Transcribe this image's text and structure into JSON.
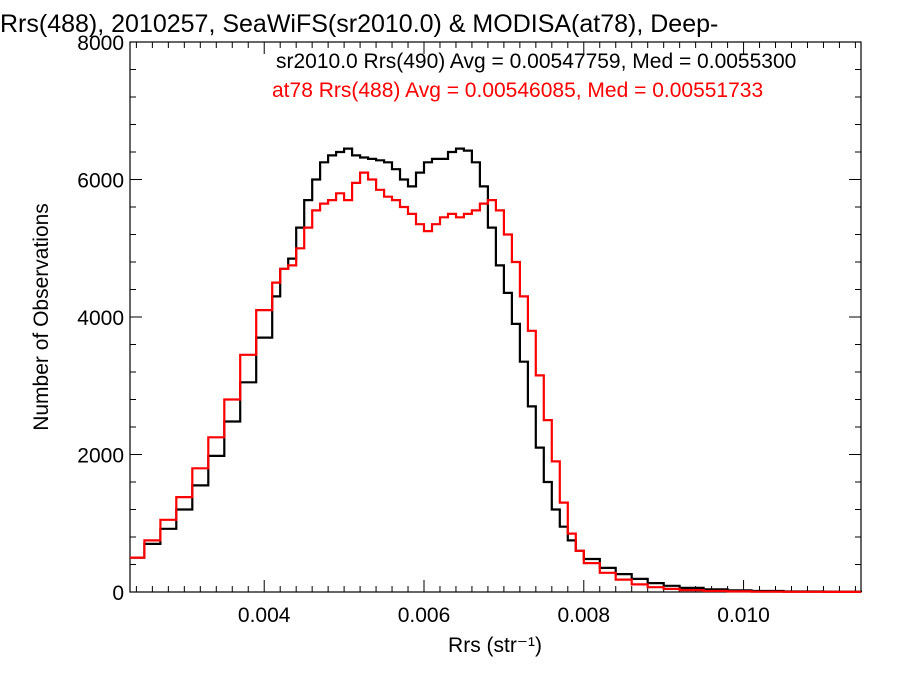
{
  "chart_data": {
    "type": "line",
    "step": true,
    "title": "Rrs(488), 2010257, SeaWiFS(sr2010.0) & MODISA(at78), Deep-",
    "xlabel": "Rrs (str⁻¹)",
    "ylabel": "Number of Observations",
    "xlim": [
      0.00232,
      0.01147
    ],
    "ylim": [
      0,
      8000
    ],
    "xticks": [
      0.004,
      0.006,
      0.008,
      0.01
    ],
    "xtick_labels": [
      "0.004",
      "0.006",
      "0.008",
      "0.010"
    ],
    "yticks": [
      0,
      2000,
      4000,
      6000,
      8000
    ],
    "ytick_labels": [
      "0",
      "2000",
      "4000",
      "6000",
      "8000"
    ],
    "grid": false,
    "legend_position": "top-right",
    "series": [
      {
        "name": "sr2010.0 Rrs(490) Avg = 0.00547759, Med = 0.0055300",
        "color": "#000000",
        "points": [
          [
            0.00232,
            500
          ],
          [
            0.0025,
            700
          ],
          [
            0.0027,
            920
          ],
          [
            0.0029,
            1200
          ],
          [
            0.0031,
            1550
          ],
          [
            0.0033,
            1980
          ],
          [
            0.0035,
            2480
          ],
          [
            0.0037,
            3050
          ],
          [
            0.0039,
            3700
          ],
          [
            0.0041,
            4300
          ],
          [
            0.0042,
            4700
          ],
          [
            0.0043,
            4850
          ],
          [
            0.0044,
            5300
          ],
          [
            0.0045,
            5700
          ],
          [
            0.0046,
            6000
          ],
          [
            0.0047,
            6250
          ],
          [
            0.0048,
            6350
          ],
          [
            0.0049,
            6400
          ],
          [
            0.005,
            6450
          ],
          [
            0.0051,
            6350
          ],
          [
            0.0052,
            6320
          ],
          [
            0.0053,
            6300
          ],
          [
            0.0054,
            6280
          ],
          [
            0.0055,
            6250
          ],
          [
            0.0056,
            6150
          ],
          [
            0.0057,
            6000
          ],
          [
            0.0058,
            5900
          ],
          [
            0.0059,
            6100
          ],
          [
            0.006,
            6250
          ],
          [
            0.0061,
            6300
          ],
          [
            0.0062,
            6300
          ],
          [
            0.0063,
            6400
          ],
          [
            0.0064,
            6450
          ],
          [
            0.0065,
            6420
          ],
          [
            0.0066,
            6250
          ],
          [
            0.0067,
            5900
          ],
          [
            0.0068,
            5300
          ],
          [
            0.0069,
            4750
          ],
          [
            0.007,
            4350
          ],
          [
            0.0071,
            3900
          ],
          [
            0.0072,
            3350
          ],
          [
            0.0073,
            2700
          ],
          [
            0.0074,
            2100
          ],
          [
            0.0075,
            1600
          ],
          [
            0.0076,
            1200
          ],
          [
            0.0077,
            950
          ],
          [
            0.0078,
            750
          ],
          [
            0.0079,
            600
          ],
          [
            0.008,
            480
          ],
          [
            0.0082,
            350
          ],
          [
            0.0084,
            260
          ],
          [
            0.0086,
            190
          ],
          [
            0.0088,
            130
          ],
          [
            0.009,
            90
          ],
          [
            0.0092,
            60
          ],
          [
            0.0095,
            40
          ],
          [
            0.0098,
            25
          ],
          [
            0.0101,
            15
          ],
          [
            0.0105,
            8
          ],
          [
            0.011,
            4
          ],
          [
            0.01147,
            2
          ]
        ]
      },
      {
        "name": "at78 Rrs(488) Avg = 0.00546085, Med = 0.00551733",
        "color": "#ff0000",
        "points": [
          [
            0.00232,
            500
          ],
          [
            0.0025,
            750
          ],
          [
            0.0027,
            1050
          ],
          [
            0.0029,
            1380
          ],
          [
            0.0031,
            1800
          ],
          [
            0.0033,
            2250
          ],
          [
            0.0035,
            2800
          ],
          [
            0.0037,
            3450
          ],
          [
            0.0039,
            4100
          ],
          [
            0.0041,
            4500
          ],
          [
            0.0042,
            4700
          ],
          [
            0.0043,
            4750
          ],
          [
            0.0044,
            5000
          ],
          [
            0.0045,
            5300
          ],
          [
            0.0046,
            5550
          ],
          [
            0.0047,
            5650
          ],
          [
            0.0048,
            5700
          ],
          [
            0.0049,
            5800
          ],
          [
            0.005,
            5700
          ],
          [
            0.0051,
            5950
          ],
          [
            0.0052,
            6100
          ],
          [
            0.0053,
            6000
          ],
          [
            0.0054,
            5850
          ],
          [
            0.0055,
            5750
          ],
          [
            0.0056,
            5700
          ],
          [
            0.0057,
            5600
          ],
          [
            0.0058,
            5500
          ],
          [
            0.0059,
            5350
          ],
          [
            0.006,
            5250
          ],
          [
            0.0061,
            5350
          ],
          [
            0.0062,
            5450
          ],
          [
            0.0063,
            5500
          ],
          [
            0.0064,
            5450
          ],
          [
            0.0065,
            5500
          ],
          [
            0.0066,
            5550
          ],
          [
            0.0067,
            5650
          ],
          [
            0.0068,
            5700
          ],
          [
            0.0069,
            5550
          ],
          [
            0.007,
            5200
          ],
          [
            0.0071,
            4800
          ],
          [
            0.0072,
            4300
          ],
          [
            0.0073,
            3800
          ],
          [
            0.0074,
            3150
          ],
          [
            0.0075,
            2500
          ],
          [
            0.0076,
            1900
          ],
          [
            0.0077,
            1300
          ],
          [
            0.0078,
            850
          ],
          [
            0.0079,
            600
          ],
          [
            0.008,
            420
          ],
          [
            0.0082,
            280
          ],
          [
            0.0084,
            180
          ],
          [
            0.0086,
            110
          ],
          [
            0.0088,
            70
          ],
          [
            0.009,
            45
          ],
          [
            0.0092,
            28
          ],
          [
            0.0095,
            15
          ],
          [
            0.0098,
            9
          ],
          [
            0.0101,
            5
          ],
          [
            0.0105,
            3
          ],
          [
            0.011,
            2
          ],
          [
            0.01147,
            1
          ]
        ]
      }
    ]
  }
}
